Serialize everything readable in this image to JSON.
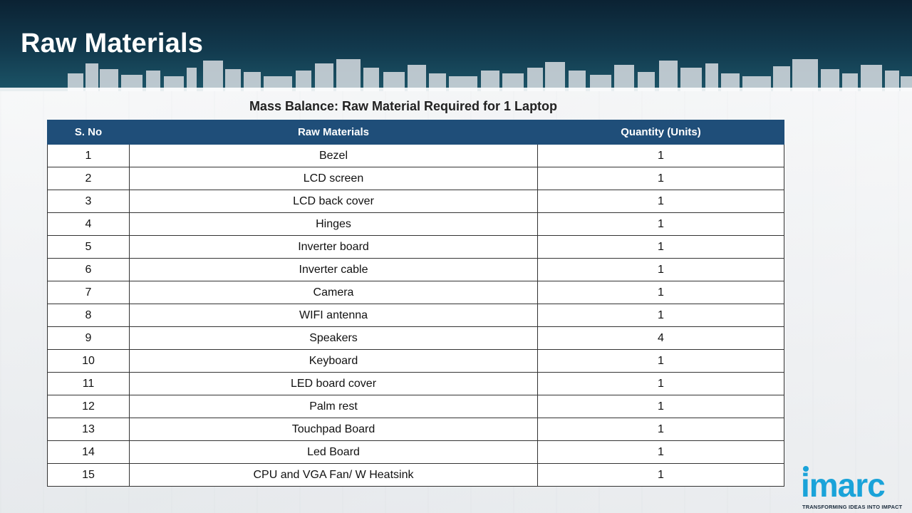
{
  "slide": {
    "title": "Raw Materials",
    "caption": "Mass Balance: Raw Material Required for 1 Laptop"
  },
  "table": {
    "headers": [
      "S. No",
      "Raw Materials",
      "Quantity  (Units)"
    ],
    "rows": [
      [
        "1",
        "Bezel",
        "1"
      ],
      [
        "2",
        "LCD screen",
        "1"
      ],
      [
        "3",
        "LCD back cover",
        "1"
      ],
      [
        "4",
        "Hinges",
        "1"
      ],
      [
        "5",
        "Inverter board",
        "1"
      ],
      [
        "6",
        "Inverter cable",
        "1"
      ],
      [
        "7",
        "Camera",
        "1"
      ],
      [
        "8",
        "WIFI antenna",
        "1"
      ],
      [
        "9",
        "Speakers",
        "4"
      ],
      [
        "10",
        "Keyboard",
        "1"
      ],
      [
        "11",
        "LED board cover",
        "1"
      ],
      [
        "12",
        "Palm rest",
        "1"
      ],
      [
        "13",
        "Touchpad Board",
        "1"
      ],
      [
        "14",
        "Led Board",
        "1"
      ],
      [
        "15",
        "CPU and VGA Fan/ W Heatsink",
        "1"
      ]
    ]
  },
  "logo": {
    "wordmark": "imarc",
    "tagline": "TRANSFORMING IDEAS INTO IMPACT"
  },
  "colors": {
    "header_bg": "#123a4e",
    "table_header": "#1f4e79",
    "brand": "#1aa3d9"
  }
}
